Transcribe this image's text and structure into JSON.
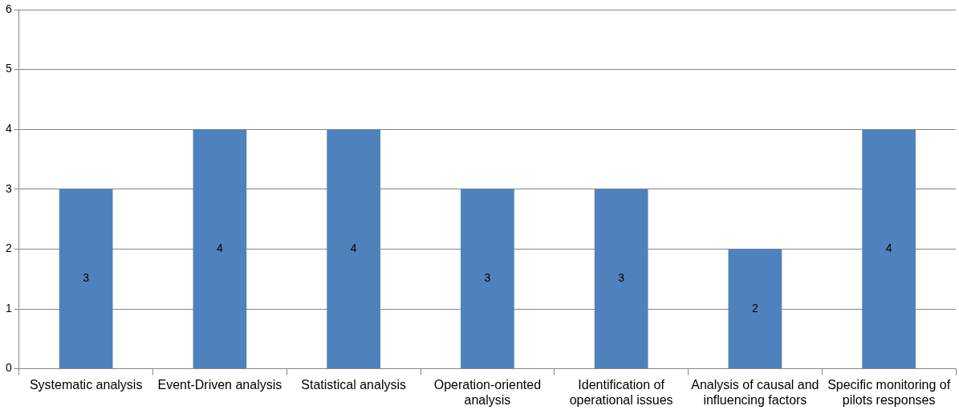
{
  "chart_data": {
    "type": "bar",
    "categories": [
      "Systematic analysis",
      "Event-Driven analysis",
      "Statistical analysis",
      "Operation-oriented analysis",
      "Identification of operational issues",
      "Analysis of causal and influencing factors",
      "Specific monitoring of pilots responses"
    ],
    "values": [
      3,
      4,
      4,
      3,
      3,
      2,
      4
    ],
    "color": "#4f81bd",
    "ylim": [
      0,
      6
    ],
    "yticks": [
      0,
      1,
      2,
      3,
      4,
      5,
      6
    ],
    "grid": "y",
    "data_labels": true
  }
}
